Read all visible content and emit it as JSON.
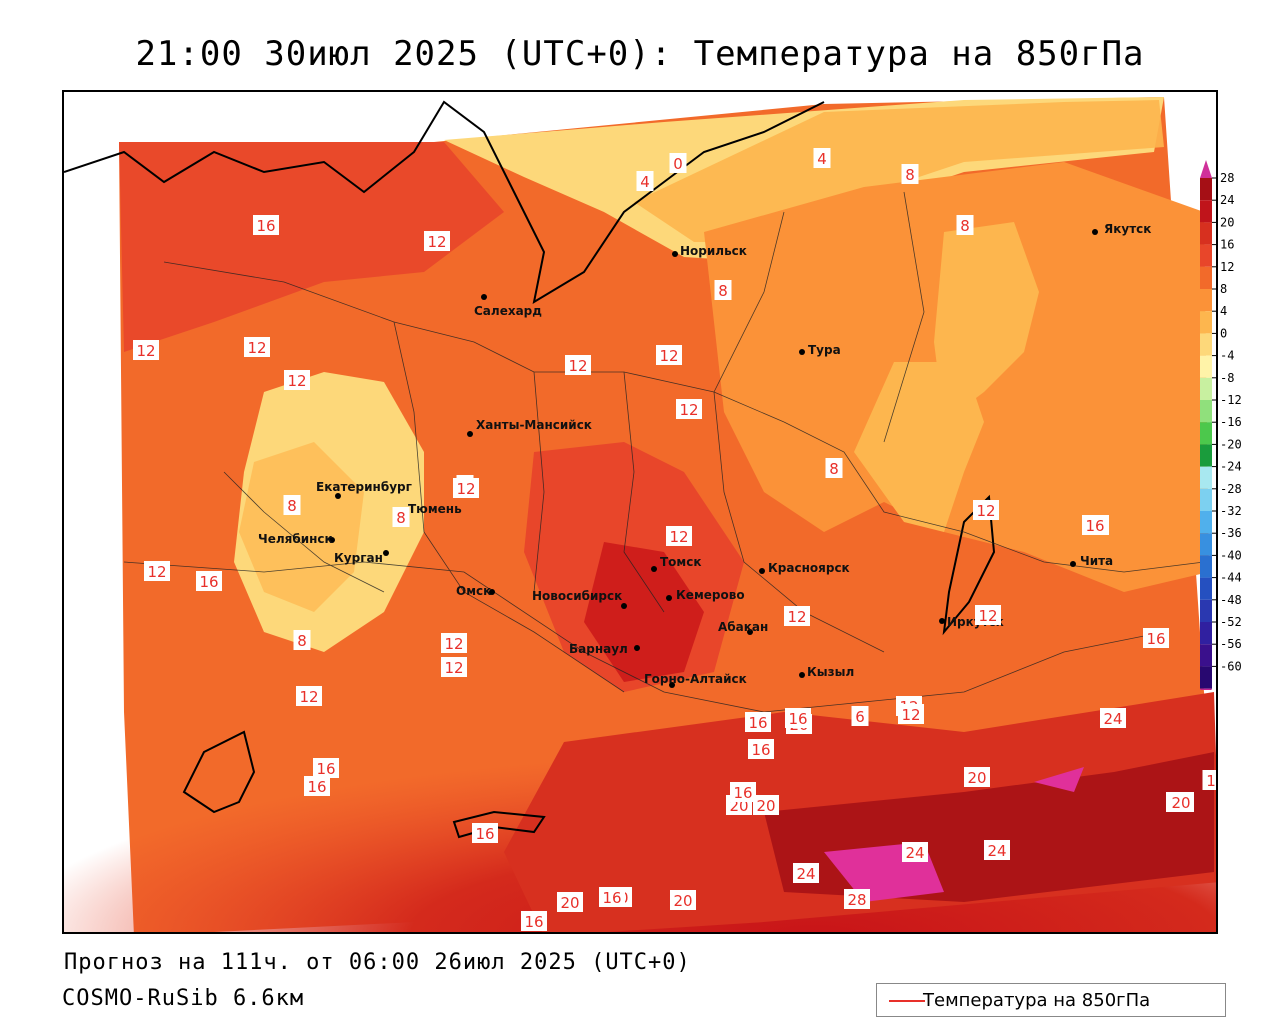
{
  "title": "21:00 30июл 2025 (UTC+0): Температура на 850гПа",
  "footer": {
    "forecast": "Прогноз на 111ч. от 06:00 26июл 2025 (UTC+0)",
    "model": "COSMO-RuSib 6.6км"
  },
  "legend": {
    "label": "Температура на 850гПа",
    "line_color": "#e8302a"
  },
  "colorbar": {
    "labels": [
      "28",
      "24",
      "20",
      "16",
      "12",
      "8",
      "4",
      "0",
      "-4",
      "-8",
      "-12",
      "-16",
      "-20",
      "-24",
      "-28",
      "-32",
      "-36",
      "-40",
      "-44",
      "-48",
      "-52",
      "-56",
      "-60"
    ],
    "colors": [
      "#a50f15",
      "#c0141b",
      "#d7301f",
      "#e8462a",
      "#f26a2a",
      "#fb9238",
      "#fdb64e",
      "#fdd87a",
      "#fff3a8",
      "#c8f0a0",
      "#90e07c",
      "#4cc84c",
      "#1a9c3c",
      "#a8e8f0",
      "#7cd0f0",
      "#50b0ec",
      "#3890e0",
      "#2a70d0",
      "#2550c0",
      "#2a38b0",
      "#3020a0",
      "#3a108c",
      "#280870"
    ],
    "top_color": "#d0309a",
    "bottom_color": "#c02090"
  },
  "cities": [
    {
      "name": "Салехард"
    },
    {
      "name": "Норильск"
    },
    {
      "name": "Якутск"
    },
    {
      "name": "Тура"
    },
    {
      "name": "Ханты-Мансийск"
    },
    {
      "name": "Екатеринбург"
    },
    {
      "name": "Тюмень"
    },
    {
      "name": "Челябинск"
    },
    {
      "name": "Курган"
    },
    {
      "name": "Омск"
    },
    {
      "name": "Новосибирск"
    },
    {
      "name": "Томск"
    },
    {
      "name": "Кемерово"
    },
    {
      "name": "Красноярск"
    },
    {
      "name": "Барнаул"
    },
    {
      "name": "Абакан"
    },
    {
      "name": "Горно-Алтайск"
    },
    {
      "name": "Кызыл"
    },
    {
      "name": "Иркутск"
    },
    {
      "name": "Чита"
    }
  ],
  "isotherm_labels": [
    "16",
    "12",
    "0",
    "4",
    "4",
    "8",
    "8",
    "12",
    "12",
    "12",
    "12",
    "12",
    "12",
    "8",
    "8",
    "4",
    "8",
    "12",
    "12",
    "12",
    "12",
    "16",
    "12",
    "16",
    "12",
    "8",
    "12",
    "8",
    "12",
    "12",
    "12",
    "12",
    "16",
    "16",
    "16",
    "16",
    "20",
    "16",
    "20",
    "24",
    "20",
    "16",
    "20",
    "20",
    "24",
    "24",
    "20",
    "16",
    "24",
    "20",
    "28",
    "20",
    "16",
    "20",
    "16",
    "16",
    "1",
    "6",
    "12"
  ]
}
